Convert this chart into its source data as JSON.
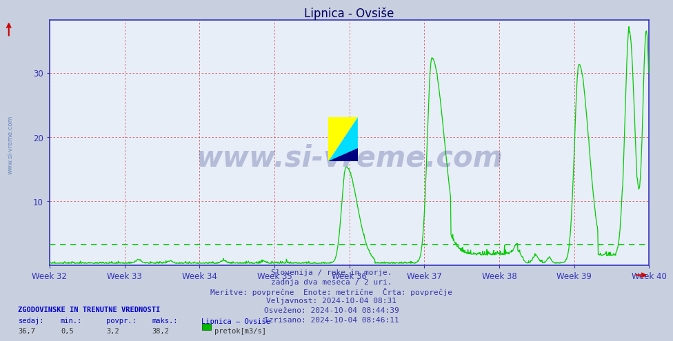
{
  "title": "Lipnica - Ovsiše",
  "xlim": [
    0,
    1344
  ],
  "ylim": [
    0,
    38.2
  ],
  "yticks": [
    0,
    10,
    20,
    30
  ],
  "week_labels": [
    "Week 32",
    "Week 33",
    "Week 34",
    "Week 35",
    "Week 36",
    "Week 37",
    "Week 38",
    "Week 39",
    "Week 40"
  ],
  "week_positions": [
    0,
    168,
    336,
    504,
    672,
    840,
    1008,
    1176,
    1344
  ],
  "avg_value": 3.2,
  "line_color": "#00cc00",
  "plot_bg_color": "#e8eef8",
  "fig_bg_color": "#c8d0df",
  "axis_color": "#3333bb",
  "grid_color": "#cc3333",
  "title_color": "#000066",
  "info_lines": [
    "Slovenija / reke in morje.",
    "zadnja dva meseca / 2 uri.",
    "Meritve: povprečne  Enote: metrične  Črta: povprečje",
    "Veljavnost: 2024-10-04 08:31",
    "Osveženo: 2024-10-04 08:44:39",
    "Izrisano: 2024-10-04 08:46:11"
  ],
  "bottom_bold": "ZGODOVINSKE IN TRENUTNE VREDNOSTI",
  "col_headers": [
    "sedaj:",
    "min.:",
    "povpr.:",
    "maks.:",
    "Lipnica – Ovsiše"
  ],
  "col_values": [
    "36,7",
    "0,5",
    "3,2",
    "38,2"
  ],
  "legend_label": "pretok[m3/s]",
  "watermark_text": "www.si-vreme.com",
  "left_watermark": "www.si-vreme.com"
}
